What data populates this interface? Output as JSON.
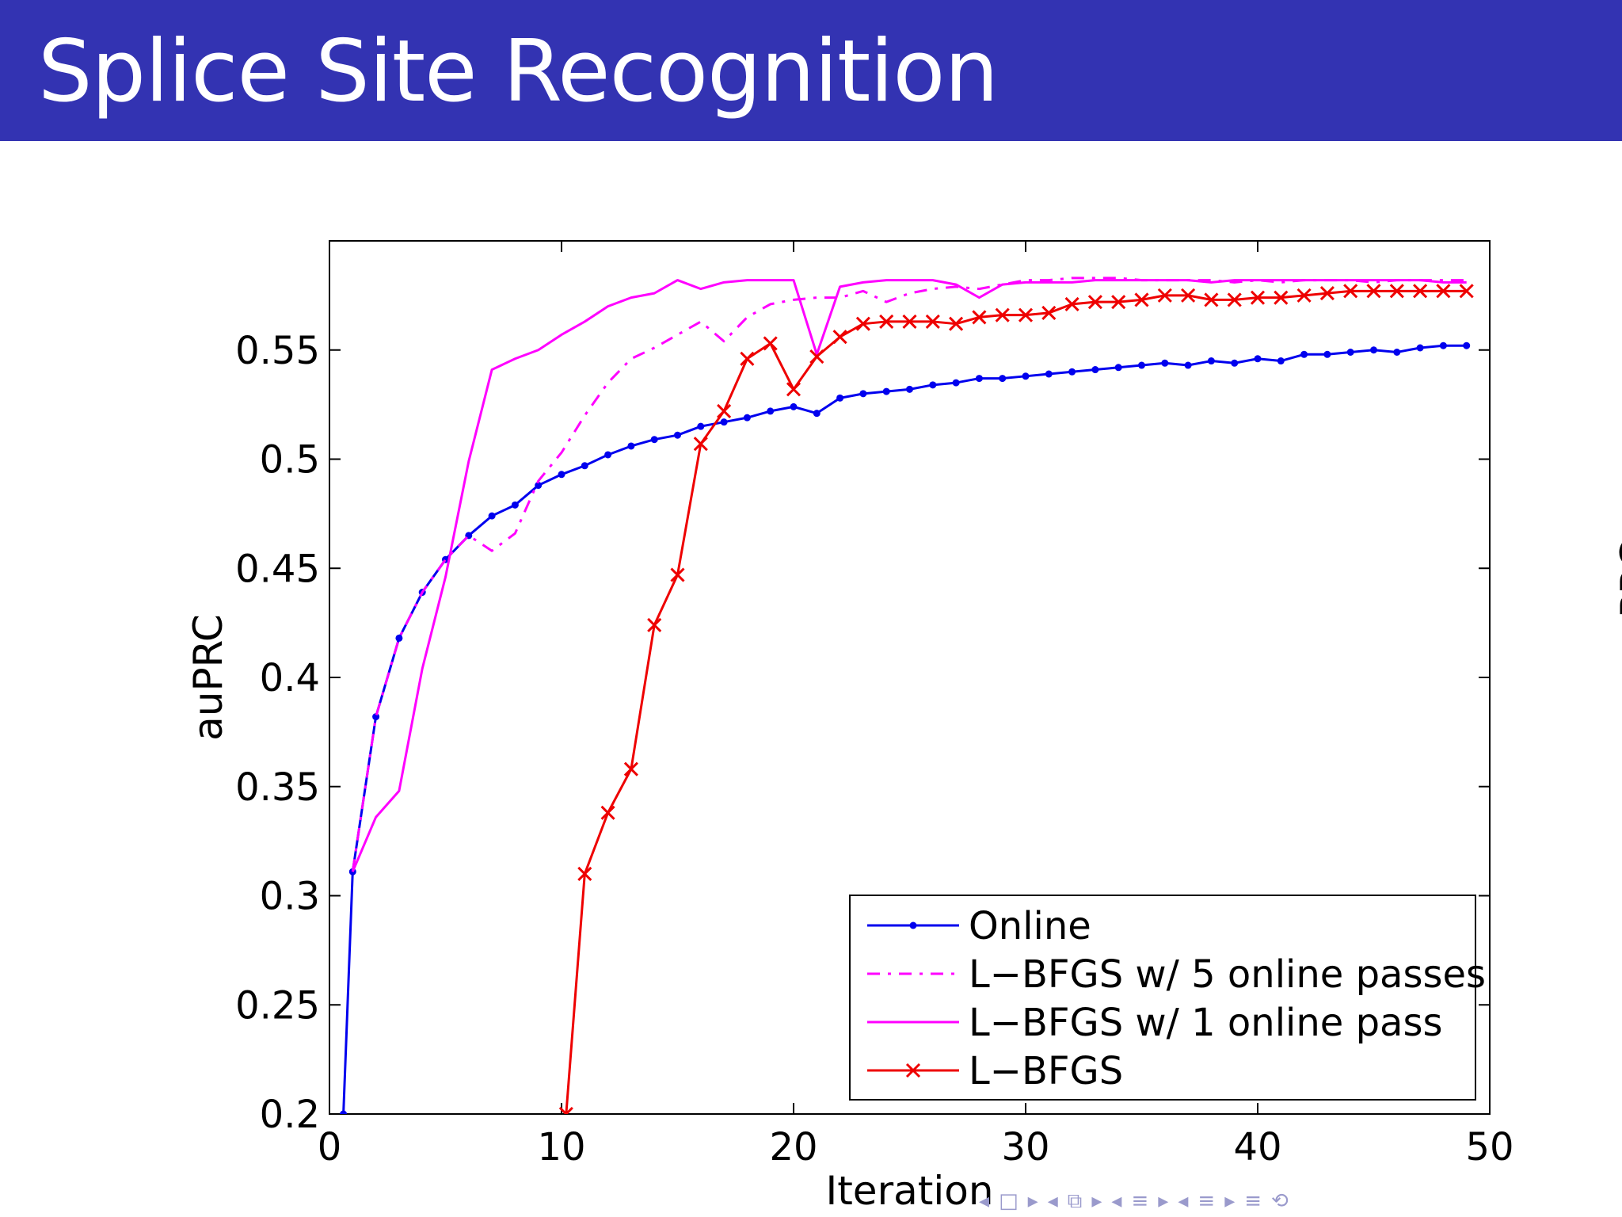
{
  "slide": {
    "title": "Splice Site Recognition"
  },
  "nav_icons": [
    "arrow-left-icon",
    "frame-icon",
    "arrow-right-icon",
    "arrow-left-icon",
    "slides-icon",
    "arrow-right-icon",
    "arrow-left-icon",
    "section-icon",
    "arrow-right-icon",
    "arrow-left-icon",
    "subsection-icon",
    "arrow-right-icon",
    "align-icon",
    "search-icon"
  ],
  "chart_data": {
    "type": "line",
    "title": "",
    "xlabel": "Iteration",
    "ylabel": "auPRC",
    "xlim": [
      0,
      50
    ],
    "ylim": [
      0.2,
      0.6
    ],
    "xticks": [
      0,
      10,
      20,
      30,
      40,
      50
    ],
    "yticks": [
      0.2,
      0.25,
      0.3,
      0.35,
      0.4,
      0.45,
      0.5,
      0.55
    ],
    "xtick_labels": [
      "0",
      "10",
      "20",
      "30",
      "40",
      "50"
    ],
    "ytick_labels": [
      "0.2",
      "0.25",
      "0.3",
      "0.35",
      "0.4",
      "0.45",
      "0.5",
      "0.55"
    ],
    "legend_position": "bottom-right",
    "cut_off_label": "PRC",
    "series": [
      {
        "name": "Online",
        "color": "#0000ee",
        "marker": "dot",
        "dash": "solid",
        "points": [
          [
            0.6,
            0.2
          ],
          [
            1,
            0.311
          ],
          [
            2,
            0.382
          ],
          [
            3,
            0.418
          ],
          [
            4,
            0.439
          ],
          [
            5,
            0.454
          ],
          [
            6,
            0.465
          ],
          [
            7,
            0.474
          ],
          [
            8,
            0.479
          ],
          [
            9,
            0.488
          ],
          [
            10,
            0.493
          ],
          [
            11,
            0.497
          ],
          [
            12,
            0.502
          ],
          [
            13,
            0.506
          ],
          [
            14,
            0.509
          ],
          [
            15,
            0.511
          ],
          [
            16,
            0.515
          ],
          [
            17,
            0.517
          ],
          [
            18,
            0.519
          ],
          [
            19,
            0.522
          ],
          [
            20,
            0.524
          ],
          [
            21,
            0.521
          ],
          [
            22,
            0.528
          ],
          [
            23,
            0.53
          ],
          [
            24,
            0.531
          ],
          [
            25,
            0.532
          ],
          [
            26,
            0.534
          ],
          [
            27,
            0.535
          ],
          [
            28,
            0.537
          ],
          [
            29,
            0.537
          ],
          [
            30,
            0.538
          ],
          [
            31,
            0.539
          ],
          [
            32,
            0.54
          ],
          [
            33,
            0.541
          ],
          [
            34,
            0.542
          ],
          [
            35,
            0.543
          ],
          [
            36,
            0.544
          ],
          [
            37,
            0.543
          ],
          [
            38,
            0.545
          ],
          [
            39,
            0.544
          ],
          [
            40,
            0.546
          ],
          [
            41,
            0.545
          ],
          [
            42,
            0.548
          ],
          [
            43,
            0.548
          ],
          [
            44,
            0.549
          ],
          [
            45,
            0.55
          ],
          [
            46,
            0.549
          ],
          [
            47,
            0.551
          ],
          [
            48,
            0.552
          ],
          [
            49,
            0.552
          ]
        ]
      },
      {
        "name": "L−BFGS w/ 5 online passes",
        "color": "#ff00ff",
        "marker": "none",
        "dash": "dashdot",
        "points": [
          [
            1,
            0.311
          ],
          [
            2,
            0.382
          ],
          [
            3,
            0.418
          ],
          [
            4,
            0.439
          ],
          [
            5,
            0.454
          ],
          [
            6,
            0.465
          ],
          [
            7,
            0.458
          ],
          [
            8,
            0.466
          ],
          [
            9,
            0.49
          ],
          [
            10,
            0.503
          ],
          [
            11,
            0.52
          ],
          [
            12,
            0.535
          ],
          [
            13,
            0.546
          ],
          [
            14,
            0.551
          ],
          [
            15,
            0.557
          ],
          [
            16,
            0.563
          ],
          [
            17,
            0.554
          ],
          [
            18,
            0.565
          ],
          [
            19,
            0.571
          ],
          [
            20,
            0.573
          ],
          [
            21,
            0.574
          ],
          [
            22,
            0.574
          ],
          [
            23,
            0.577
          ],
          [
            24,
            0.572
          ],
          [
            25,
            0.576
          ],
          [
            26,
            0.578
          ],
          [
            27,
            0.579
          ],
          [
            28,
            0.578
          ],
          [
            29,
            0.58
          ],
          [
            30,
            0.582
          ],
          [
            31,
            0.582
          ],
          [
            32,
            0.583
          ],
          [
            33,
            0.583
          ],
          [
            34,
            0.583
          ],
          [
            35,
            0.582
          ],
          [
            36,
            0.582
          ],
          [
            37,
            0.582
          ],
          [
            38,
            0.582
          ],
          [
            39,
            0.581
          ],
          [
            40,
            0.582
          ],
          [
            41,
            0.581
          ],
          [
            42,
            0.582
          ],
          [
            43,
            0.582
          ],
          [
            44,
            0.582
          ],
          [
            45,
            0.581
          ],
          [
            46,
            0.582
          ],
          [
            47,
            0.582
          ],
          [
            48,
            0.582
          ],
          [
            49,
            0.582
          ]
        ]
      },
      {
        "name": "L−BFGS w/ 1 online pass",
        "color": "#ff00ff",
        "marker": "none",
        "dash": "solid",
        "points": [
          [
            1,
            0.311
          ],
          [
            2,
            0.336
          ],
          [
            3,
            0.348
          ],
          [
            4,
            0.404
          ],
          [
            5,
            0.446
          ],
          [
            6,
            0.499
          ],
          [
            7,
            0.541
          ],
          [
            8,
            0.546
          ],
          [
            9,
            0.55
          ],
          [
            10,
            0.557
          ],
          [
            11,
            0.563
          ],
          [
            12,
            0.57
          ],
          [
            13,
            0.574
          ],
          [
            14,
            0.576
          ],
          [
            15,
            0.582
          ],
          [
            16,
            0.578
          ],
          [
            17,
            0.581
          ],
          [
            18,
            0.582
          ],
          [
            19,
            0.582
          ],
          [
            20,
            0.582
          ],
          [
            21,
            0.548
          ],
          [
            22,
            0.579
          ],
          [
            23,
            0.581
          ],
          [
            24,
            0.582
          ],
          [
            25,
            0.582
          ],
          [
            26,
            0.582
          ],
          [
            27,
            0.58
          ],
          [
            28,
            0.574
          ],
          [
            29,
            0.58
          ],
          [
            30,
            0.581
          ],
          [
            31,
            0.581
          ],
          [
            32,
            0.581
          ],
          [
            33,
            0.582
          ],
          [
            34,
            0.582
          ],
          [
            35,
            0.582
          ],
          [
            36,
            0.582
          ],
          [
            37,
            0.582
          ],
          [
            38,
            0.581
          ],
          [
            39,
            0.582
          ],
          [
            40,
            0.582
          ],
          [
            41,
            0.582
          ],
          [
            42,
            0.582
          ],
          [
            43,
            0.582
          ],
          [
            44,
            0.582
          ],
          [
            45,
            0.582
          ],
          [
            46,
            0.582
          ],
          [
            47,
            0.582
          ],
          [
            48,
            0.581
          ],
          [
            49,
            0.581
          ]
        ]
      },
      {
        "name": "L−BFGS",
        "color": "#ee0000",
        "marker": "x",
        "dash": "solid",
        "points": [
          [
            10.2,
            0.2
          ],
          [
            11,
            0.31
          ],
          [
            12,
            0.338
          ],
          [
            13,
            0.358
          ],
          [
            14,
            0.424
          ],
          [
            15,
            0.447
          ],
          [
            16,
            0.507
          ],
          [
            17,
            0.522
          ],
          [
            18,
            0.546
          ],
          [
            19,
            0.553
          ],
          [
            20,
            0.532
          ],
          [
            21,
            0.547
          ],
          [
            22,
            0.556
          ],
          [
            23,
            0.562
          ],
          [
            24,
            0.563
          ],
          [
            25,
            0.563
          ],
          [
            26,
            0.563
          ],
          [
            27,
            0.562
          ],
          [
            28,
            0.565
          ],
          [
            29,
            0.566
          ],
          [
            30,
            0.566
          ],
          [
            31,
            0.567
          ],
          [
            32,
            0.571
          ],
          [
            33,
            0.572
          ],
          [
            34,
            0.572
          ],
          [
            35,
            0.573
          ],
          [
            36,
            0.575
          ],
          [
            37,
            0.575
          ],
          [
            38,
            0.573
          ],
          [
            39,
            0.573
          ],
          [
            40,
            0.574
          ],
          [
            41,
            0.574
          ],
          [
            42,
            0.575
          ],
          [
            43,
            0.576
          ],
          [
            44,
            0.577
          ],
          [
            45,
            0.577
          ],
          [
            46,
            0.577
          ],
          [
            47,
            0.577
          ],
          [
            48,
            0.577
          ],
          [
            49,
            0.577
          ]
        ]
      }
    ]
  }
}
